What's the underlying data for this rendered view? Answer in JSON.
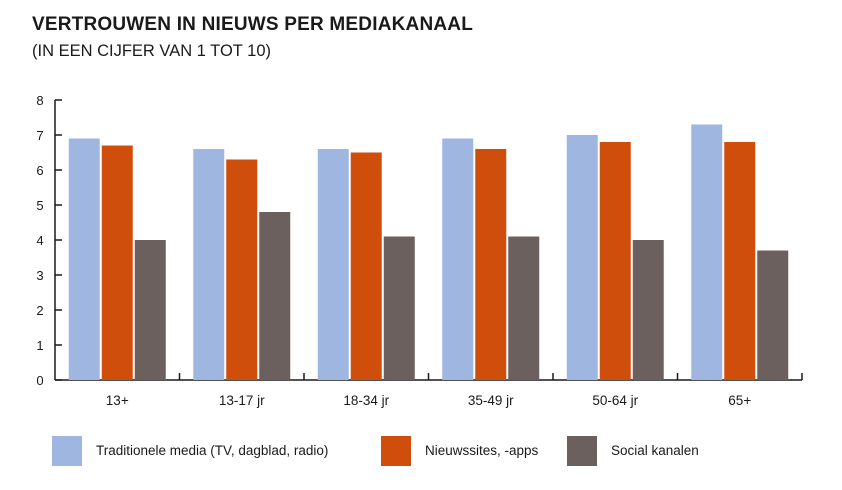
{
  "title": "VERTROUWEN IN NIEUWS PER MEDIAKANAAL",
  "subtitle": "(IN EEN CIJFER VAN 1 TOT 10)",
  "chart_data": {
    "type": "bar",
    "title": "VERTROUWEN IN NIEUWS PER MEDIAKANAAL",
    "subtitle": "(IN EEN CIJFER VAN 1 TOT 10)",
    "xlabel": "",
    "ylabel": "",
    "ylim": [
      0,
      8
    ],
    "yticks": [
      "0",
      "1",
      "2",
      "3",
      "4",
      "5",
      "6",
      "7",
      "8"
    ],
    "grid": false,
    "legend_position": "bottom",
    "categories": [
      "13+",
      "13-17 jr",
      "18-34 jr",
      "35-49 jr",
      "50-64 jr",
      "65+"
    ],
    "series": [
      {
        "name": "Traditionele media (TV, dagblad, radio)",
        "color": "#9fb6e0",
        "values": [
          6.9,
          6.6,
          6.6,
          6.9,
          7.0,
          7.3
        ]
      },
      {
        "name": "Nieuwssites, -apps",
        "color": "#d04e0c",
        "values": [
          6.7,
          6.3,
          6.5,
          6.6,
          6.8,
          6.8
        ]
      },
      {
        "name": "Social kanalen",
        "color": "#6b605d",
        "values": [
          4.0,
          4.8,
          4.1,
          4.1,
          4.0,
          3.7
        ]
      }
    ]
  }
}
